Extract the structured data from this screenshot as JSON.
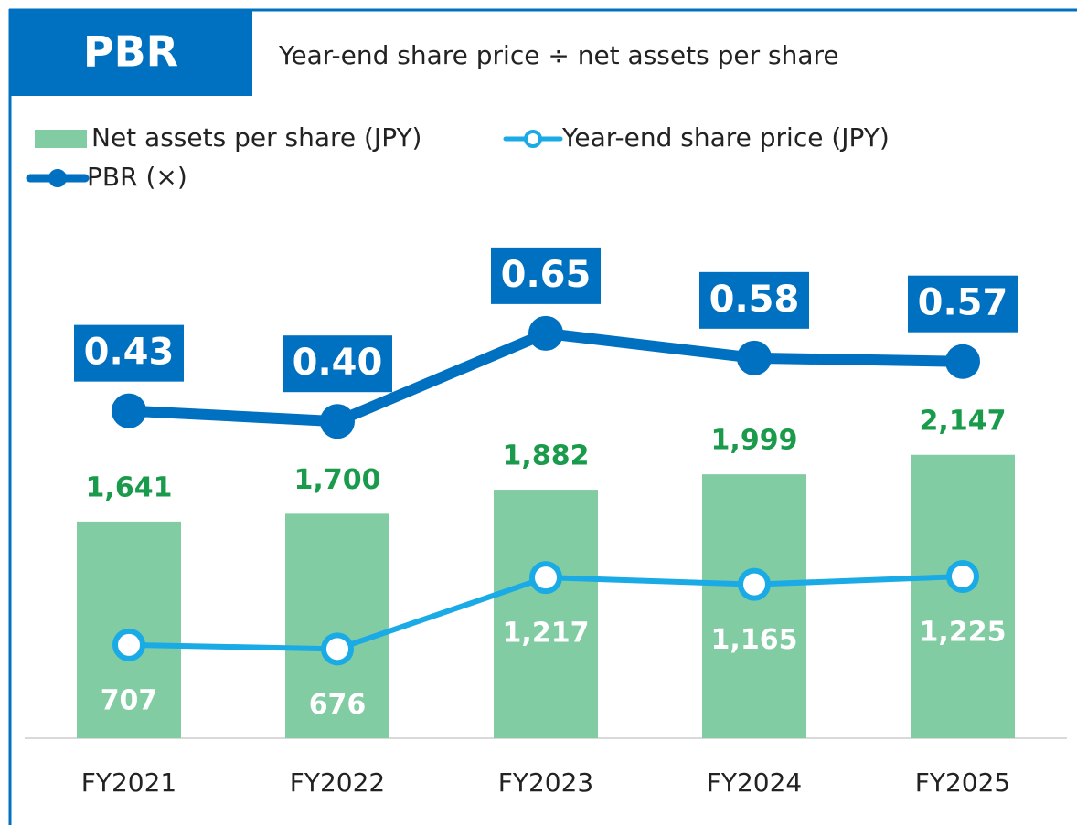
{
  "chart_data": {
    "type": "bar-line",
    "title": "PBR",
    "subtitle": "Year-end share price ÷ net assets per share",
    "categories": [
      "FY2021",
      "FY2022",
      "FY2023",
      "FY2024",
      "FY2025"
    ],
    "ylim": [
      0,
      4000
    ],
    "y2lim": [
      -0.5,
      1.0
    ],
    "series": [
      {
        "name": "Net assets per share (JPY)",
        "type": "bar",
        "color": "#82cca3",
        "label_color": "#1a9b4b",
        "values": [
          1641,
          1700,
          1882,
          1999,
          2147
        ],
        "value_labels": [
          "1,641",
          "1,700",
          "1,882",
          "1,999",
          "2,147"
        ]
      },
      {
        "name": "Year-end share price (JPY)",
        "type": "line",
        "color": "#1aabe6",
        "label_color": "#ffffff",
        "values": [
          707,
          676,
          1217,
          1165,
          1225
        ],
        "value_labels": [
          "707",
          "676",
          "1,217",
          "1,165",
          "1,225"
        ]
      },
      {
        "name": "PBR (×)",
        "type": "line",
        "axis": "y2",
        "color": "#0070c0",
        "label_color": "#ffffff",
        "values": [
          0.43,
          0.4,
          0.65,
          0.58,
          0.57
        ],
        "value_labels": [
          "0.43",
          "0.40",
          "0.65",
          "0.58",
          "0.57"
        ]
      }
    ]
  }
}
